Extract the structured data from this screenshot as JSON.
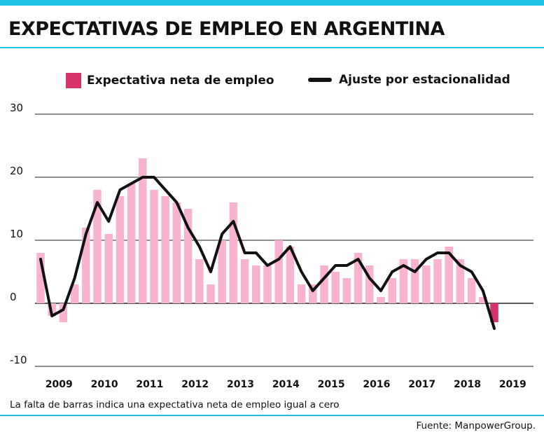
{
  "title": "EXPECTATIVAS DE EMPLEO EN ARGENTINA",
  "legend": {
    "bars_label": "Expectativa neta de empleo",
    "line_label": "Ajuste por estacionalidad"
  },
  "footnote": "La falta de barras indica una expectativa neta de empleo igual a cero",
  "source": "Fuente: ManpowerGroup.",
  "colors": {
    "accent": "#1fc3e6",
    "bar": "#f7b3d0",
    "bar_highlight": "#d6336c",
    "line": "#111111",
    "grid": "#222222"
  },
  "chart_data": {
    "type": "bar",
    "ylim": [
      -10,
      30
    ],
    "yticks": [
      "30",
      "20",
      "10",
      "0",
      "-10"
    ],
    "ytick_values": [
      30,
      20,
      10,
      0,
      -10
    ],
    "grid": true,
    "legend_position": "top",
    "year_labels": [
      "2009",
      "2010",
      "2011",
      "2012",
      "2013",
      "2014",
      "2015",
      "2016",
      "2017",
      "2018",
      "2019"
    ],
    "quarters_per_year": 4,
    "first_year": 2009,
    "series": [
      {
        "name": "Expectativa neta de empleo",
        "kind": "bar",
        "values": [
          8,
          -2,
          -3,
          3,
          12,
          18,
          11,
          17,
          19,
          23,
          18,
          17,
          16,
          15,
          7,
          3,
          10,
          16,
          7,
          6,
          6,
          10,
          9,
          3,
          3,
          6,
          5,
          4,
          8,
          6,
          1,
          4,
          7,
          7,
          6,
          7,
          9,
          7,
          4,
          1,
          -3
        ]
      },
      {
        "name": "Ajuste por estacionalidad",
        "kind": "line",
        "values": [
          7,
          -2,
          -1,
          4,
          11,
          16,
          13,
          18,
          19,
          20,
          20,
          18,
          16,
          12,
          9,
          5,
          11,
          13,
          8,
          8,
          6,
          7,
          9,
          5,
          2,
          4,
          6,
          6,
          7,
          4,
          2,
          5,
          6,
          5,
          7,
          8,
          8,
          6,
          5,
          2,
          -4
        ]
      }
    ]
  }
}
